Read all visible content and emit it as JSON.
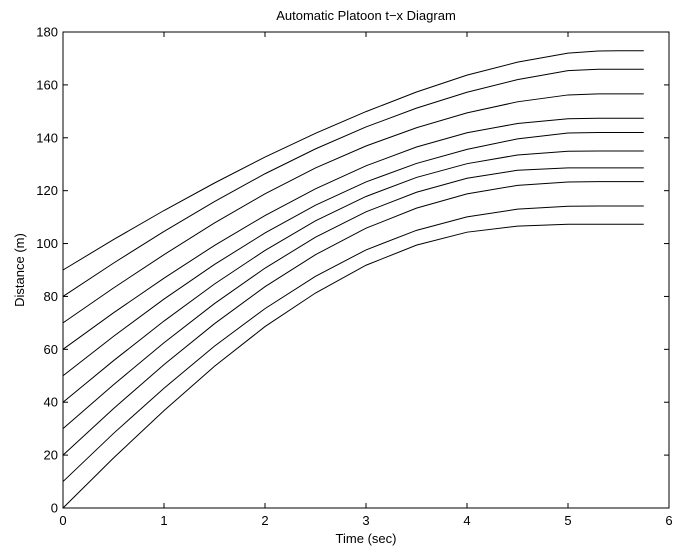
{
  "chart_data": {
    "type": "line",
    "title": "Automatic Platoon t−x Diagram",
    "xlabel": "Time (sec)",
    "ylabel": "Distance (m)",
    "xlim": [
      0,
      6
    ],
    "ylim": [
      0,
      180
    ],
    "xticks": [
      0,
      1,
      2,
      3,
      4,
      5,
      6
    ],
    "yticks": [
      0,
      20,
      40,
      60,
      80,
      100,
      120,
      140,
      160,
      180
    ],
    "grid": false,
    "legend": "none",
    "x": [
      0,
      0.5,
      1.0,
      1.5,
      2.0,
      2.5,
      3.0,
      3.5,
      4.0,
      4.5,
      5.0,
      5.3,
      5.5,
      5.75
    ],
    "series": [
      {
        "values": [
          0,
          18.9,
          36.8,
          53.6,
          68.6,
          81.3,
          91.8,
          99.4,
          104.3,
          106.6,
          107.3,
          107.3,
          107.3,
          107.3
        ]
      },
      {
        "values": [
          10,
          28.2,
          45.3,
          61.2,
          75.4,
          87.6,
          97.6,
          105.0,
          110.1,
          113.0,
          114.1,
          114.2,
          114.2,
          114.2
        ]
      },
      {
        "values": [
          20,
          37.6,
          54.2,
          69.7,
          83.7,
          95.8,
          105.8,
          113.4,
          118.8,
          122.0,
          123.3,
          123.4,
          123.4,
          123.4
        ]
      },
      {
        "values": [
          30,
          46.6,
          62.5,
          77.3,
          90.7,
          102.4,
          112.0,
          119.4,
          124.7,
          127.7,
          128.6,
          128.6,
          128.6,
          128.6
        ]
      },
      {
        "values": [
          40,
          55.7,
          70.7,
          84.7,
          97.4,
          108.6,
          117.8,
          125.0,
          130.2,
          133.5,
          134.9,
          135.0,
          135.0,
          135.0
        ]
      },
      {
        "values": [
          50,
          64.9,
          79.0,
          92.1,
          104.0,
          114.5,
          123.3,
          130.3,
          135.6,
          139.6,
          141.8,
          142.0,
          142.0,
          142.0
        ]
      },
      {
        "values": [
          60,
          73.8,
          86.9,
          99.3,
          110.6,
          120.7,
          129.4,
          136.5,
          141.9,
          145.4,
          147.2,
          147.4,
          147.4,
          147.4
        ]
      },
      {
        "values": [
          70,
          83.2,
          95.8,
          107.8,
          118.8,
          128.6,
          136.9,
          143.8,
          149.4,
          153.6,
          156.2,
          156.6,
          156.6,
          156.6
        ]
      },
      {
        "values": [
          80,
          92.6,
          104.6,
          115.9,
          126.4,
          135.8,
          144.1,
          151.2,
          157.2,
          162.0,
          165.4,
          165.9,
          165.9,
          165.9
        ]
      },
      {
        "values": [
          90,
          101.5,
          112.5,
          122.9,
          132.7,
          141.7,
          149.9,
          157.3,
          163.7,
          168.6,
          172.0,
          172.8,
          172.9,
          172.9
        ]
      }
    ]
  }
}
